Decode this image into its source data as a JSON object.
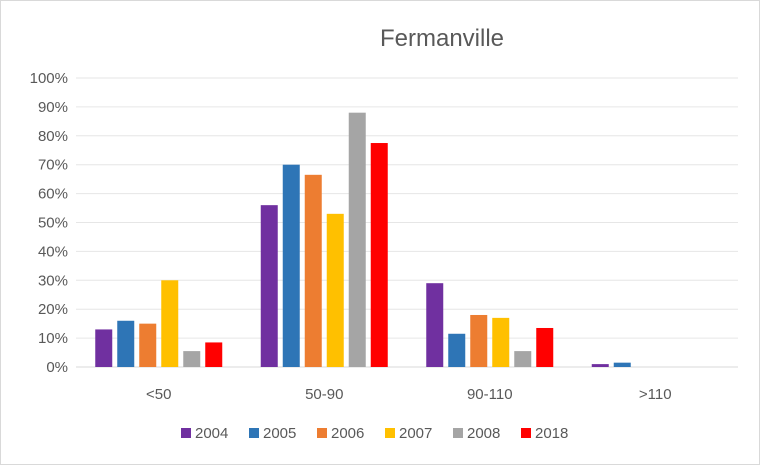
{
  "chart_data": {
    "type": "bar",
    "title": "Fermanville",
    "categories": [
      "<50",
      "50-90",
      "90-110",
      ">110"
    ],
    "series": [
      {
        "name": "2004",
        "color": "#7030A0",
        "values": [
          13,
          56,
          29,
          1
        ]
      },
      {
        "name": "2005",
        "color": "#2E75B6",
        "values": [
          16,
          70,
          11.5,
          1.5
        ]
      },
      {
        "name": "2006",
        "color": "#ED7D31",
        "values": [
          15,
          66.5,
          18,
          0
        ]
      },
      {
        "name": "2007",
        "color": "#FFC000",
        "values": [
          30,
          53,
          17,
          0
        ]
      },
      {
        "name": "2008",
        "color": "#A5A5A5",
        "values": [
          5.5,
          88,
          5.5,
          0
        ]
      },
      {
        "name": "2018",
        "color": "#FF0000",
        "values": [
          8.5,
          77.5,
          13.5,
          0
        ]
      }
    ],
    "ylim": [
      0,
      100
    ],
    "yticks": [
      "0%",
      "10%",
      "20%",
      "30%",
      "40%",
      "50%",
      "60%",
      "70%",
      "80%",
      "90%",
      "100%"
    ],
    "xlabel": "",
    "ylabel": "",
    "grid": true,
    "legend_position": "bottom"
  }
}
